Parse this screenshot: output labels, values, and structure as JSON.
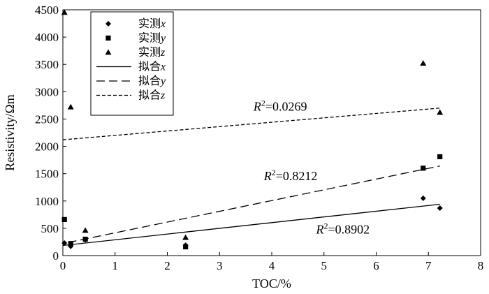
{
  "chart_data": {
    "type": "scatter",
    "xlabel": "TOC/%",
    "ylabel": "Resistivity/Ωm",
    "xlim": [
      0,
      8
    ],
    "ylim": [
      0,
      4500
    ],
    "xticks": [
      0,
      1,
      2,
      3,
      4,
      5,
      6,
      7,
      8
    ],
    "yticks": [
      0,
      500,
      1000,
      1500,
      2000,
      2500,
      3000,
      3500,
      4000,
      4500
    ],
    "grid": false,
    "legend_position": "top-left",
    "series": [
      {
        "name_prefix": "实测",
        "name_var": "x",
        "marker": "diamond",
        "points": [
          {
            "x": 0.03,
            "y": 230
          },
          {
            "x": 0.15,
            "y": 170
          },
          {
            "x": 0.43,
            "y": 290
          },
          {
            "x": 2.35,
            "y": 190
          },
          {
            "x": 6.9,
            "y": 1050
          },
          {
            "x": 7.22,
            "y": 870
          }
        ]
      },
      {
        "name_prefix": "实测",
        "name_var": "y",
        "marker": "square",
        "points": [
          {
            "x": 0.03,
            "y": 660
          },
          {
            "x": 0.15,
            "y": 220
          },
          {
            "x": 0.43,
            "y": 300
          },
          {
            "x": 2.35,
            "y": 160
          },
          {
            "x": 6.9,
            "y": 1600
          },
          {
            "x": 7.22,
            "y": 1810
          }
        ]
      },
      {
        "name_prefix": "实测",
        "name_var": "z",
        "marker": "triangle",
        "points": [
          {
            "x": 0.03,
            "y": 4450
          },
          {
            "x": 0.15,
            "y": 2720
          },
          {
            "x": 0.43,
            "y": 460
          },
          {
            "x": 2.35,
            "y": 330
          },
          {
            "x": 6.9,
            "y": 3520
          },
          {
            "x": 7.22,
            "y": 2620
          }
        ]
      }
    ],
    "fits": [
      {
        "name_prefix": "拟合",
        "name_var": "x",
        "style": "solid",
        "x": [
          0,
          7.22
        ],
        "y": [
          185,
          940
        ],
        "r2_var": "R",
        "r2_exp": "2",
        "r2_value": "=0.8902",
        "label_at": {
          "x": 4.85,
          "y": 400
        }
      },
      {
        "name_prefix": "拟合",
        "name_var": "y",
        "style": "dashed",
        "x": [
          0.1,
          7.22
        ],
        "y": [
          240,
          1640
        ],
        "r2_var": "R",
        "r2_exp": "2",
        "r2_value": "=0.8212",
        "label_at": {
          "x": 3.85,
          "y": 1380
        }
      },
      {
        "name_prefix": "拟合",
        "name_var": "z",
        "style": "short-dashed",
        "x": [
          0,
          7.22
        ],
        "y": [
          2120,
          2700
        ],
        "r2_var": "R",
        "r2_exp": "2",
        "r2_value": "=0.0269",
        "label_at": {
          "x": 3.65,
          "y": 2650
        }
      }
    ]
  }
}
